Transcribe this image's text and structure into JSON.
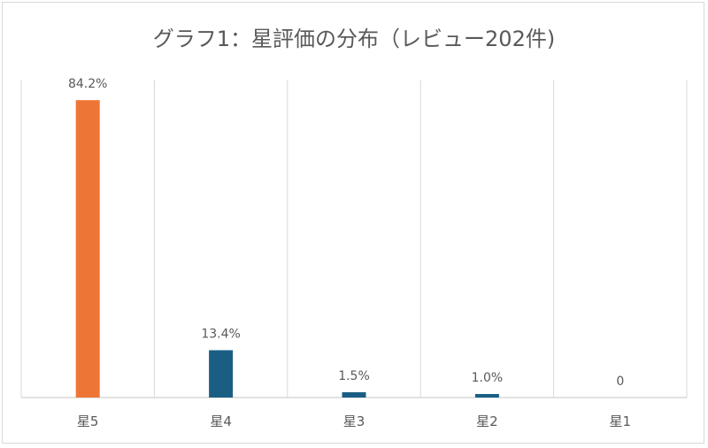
{
  "chart_data": {
    "type": "bar",
    "title": "グラフ1：星評価の分布（レビュー202件)",
    "categories": [
      "星5",
      "星4",
      "星3",
      "星2",
      "星1"
    ],
    "values": [
      84.2,
      13.4,
      1.5,
      1.0,
      0
    ],
    "data_labels": [
      "84.2%",
      "13.4%",
      "1.5%",
      "1.0%",
      "0"
    ],
    "xlabel": "",
    "ylabel": "",
    "ylim": [
      0,
      90
    ],
    "grid": "vertical category separators",
    "legend": "none",
    "colors": {
      "highlight": "#ED7636",
      "default": "#1A5F83",
      "grid": "#D9D9D9",
      "text": "#595959"
    }
  }
}
